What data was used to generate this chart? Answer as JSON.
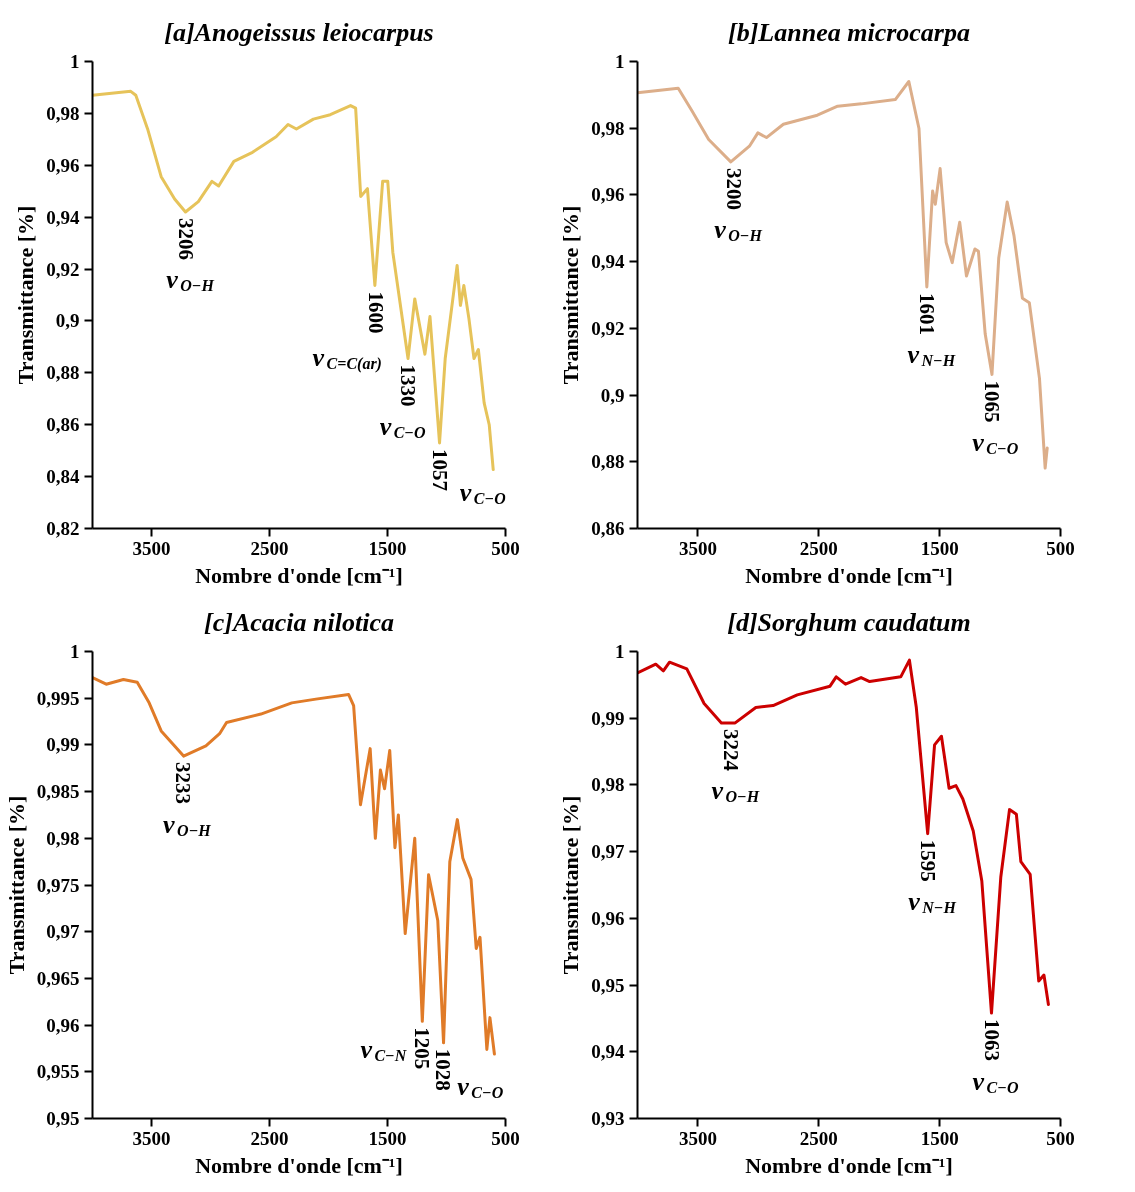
{
  "chart_data": [
    {
      "type": "line",
      "title": "[a]Anogeissus leiocarpus",
      "xlabel": "Nombre d'onde [cm⁻¹]",
      "ylabel": "Transmittance [%]",
      "grid": false,
      "x": [
        4000,
        3676,
        3633,
        3533,
        3418,
        3304,
        3212,
        3103,
        2988,
        2931,
        2802,
        2644,
        2444,
        2343,
        2272,
        2128,
        1985,
        1813,
        1770,
        1727,
        1670,
        1607,
        1541,
        1498,
        1455,
        1326,
        1269,
        1183,
        1140,
        1059,
        1011,
        910,
        882,
        853,
        810,
        767,
        730,
        681,
        638,
        604
      ],
      "series": [
        {
          "color": "#e6c35a",
          "values": [
            0.987,
            0.9885,
            0.987,
            0.974,
            0.9556,
            0.947,
            0.942,
            0.946,
            0.9538,
            0.952,
            0.9615,
            0.965,
            0.971,
            0.9757,
            0.974,
            0.9778,
            0.9795,
            0.983,
            0.982,
            0.948,
            0.951,
            0.9137,
            0.9538,
            0.9538,
            0.9265,
            0.8855,
            0.9085,
            0.8872,
            0.9017,
            0.853,
            0.8855,
            0.9214,
            0.906,
            0.9137,
            0.9009,
            0.8855,
            0.889,
            0.8684,
            0.86,
            0.8427
          ]
        }
      ],
      "xlim": [
        4000,
        500
      ],
      "xticks": [
        3500,
        2500,
        1500,
        500
      ],
      "ylim": [
        0.82,
        1
      ],
      "yticks": [
        {
          "value": 0.82,
          "label": "0,82"
        },
        {
          "value": 0.84,
          "label": "0,84"
        },
        {
          "value": 0.86,
          "label": "0,86"
        },
        {
          "value": 0.88,
          "label": "0,88"
        },
        {
          "value": 0.9,
          "label": "0,9"
        },
        {
          "value": 0.92,
          "label": "0,92"
        },
        {
          "value": 0.94,
          "label": "0,94"
        },
        {
          "value": 0.96,
          "label": "0,96"
        },
        {
          "value": 0.98,
          "label": "0,98"
        },
        {
          "value": 1,
          "label": "1"
        }
      ],
      "annotations": [
        {
          "text": "3206",
          "x": 3206,
          "y": 0.942
        },
        {
          "text": "ν$_{O−H}$",
          "x": 3206,
          "y": 0.942
        },
        {
          "text": "1600",
          "x": 1600,
          "y": 0.9137
        },
        {
          "text": "ν$_{C=C(ar)}$",
          "x": 1600,
          "y": 0.9137
        },
        {
          "text": "1330",
          "x": 1330,
          "y": 0.8855
        },
        {
          "text": "ν$_{C−O}$",
          "x": 1330,
          "y": 0.8855
        },
        {
          "text": "1057",
          "x": 1057,
          "y": 0.853
        },
        {
          "text": "ν$_{C−O}$",
          "x": 1057,
          "y": 0.853
        }
      ]
    },
    {
      "type": "line",
      "title": "[b]Lannea microcarpa",
      "xlabel": "Nombre d'onde [cm⁻¹]",
      "ylabel": "Transmittance [%]",
      "grid": false,
      "x": [
        4000,
        3663,
        3551,
        3411,
        3228,
        3074,
        3004,
        2933,
        2793,
        2512,
        2344,
        2148,
        1867,
        1755,
        1671,
        1606,
        1558,
        1536,
        1496,
        1446,
        1396,
        1334,
        1278,
        1208,
        1179,
        1123,
        1067,
        1011,
        941,
        885,
        815,
        758,
        674,
        627,
        610
      ],
      "series": [
        {
          "color": "#dcae8a",
          "values": [
            0.9906,
            0.992,
            0.9853,
            0.9766,
            0.9699,
            0.9746,
            0.9786,
            0.9772,
            0.9812,
            0.9839,
            0.9866,
            0.9873,
            0.9886,
            0.994,
            0.9799,
            0.9324,
            0.9612,
            0.9572,
            0.9679,
            0.9457,
            0.9397,
            0.9518,
            0.9357,
            0.9438,
            0.9431,
            0.9183,
            0.9062,
            0.9411,
            0.9579,
            0.9478,
            0.929,
            0.9277,
            0.905,
            0.8781,
            0.8841
          ]
        }
      ],
      "xlim": [
        4000,
        500
      ],
      "xticks": [
        3500,
        2500,
        1500,
        500
      ],
      "ylim": [
        0.86,
        1
      ],
      "yticks": [
        {
          "value": 0.86,
          "label": "0,86"
        },
        {
          "value": 0.88,
          "label": "0,88"
        },
        {
          "value": 0.9,
          "label": "0,9"
        },
        {
          "value": 0.92,
          "label": "0,92"
        },
        {
          "value": 0.94,
          "label": "0,94"
        },
        {
          "value": 0.96,
          "label": "0,96"
        },
        {
          "value": 0.98,
          "label": "0,98"
        },
        {
          "value": 1,
          "label": "1"
        }
      ],
      "annotations": [
        {
          "text": "3200",
          "x": 3200,
          "y": 0.9699
        },
        {
          "text": "ν$_{O−H}$",
          "x": 3200,
          "y": 0.9699
        },
        {
          "text": "1601",
          "x": 1601,
          "y": 0.9324
        },
        {
          "text": "ν$_{N−H}$",
          "x": 1601,
          "y": 0.9324
        },
        {
          "text": "1065",
          "x": 1065,
          "y": 0.9062
        },
        {
          "text": "ν$_{C−O}$",
          "x": 1065,
          "y": 0.9062
        }
      ]
    },
    {
      "type": "line",
      "title": "[c]Acacia nilotica",
      "xlabel": "Nombre d'onde [cm⁻¹]",
      "ylabel": "Transmittance [%]",
      "grid": false,
      "x": [
        4000,
        3884,
        3738,
        3621,
        3520,
        3418,
        3228,
        3039,
        2923,
        2864,
        2573,
        2311,
        2107,
        1830,
        1787,
        1729,
        1647,
        1603,
        1560,
        1525,
        1481,
        1437,
        1408,
        1350,
        1269,
        1205,
        1152,
        1074,
        1025,
        972,
        908,
        862,
        792,
        748,
        716,
        658,
        632,
        594
      ],
      "series": [
        {
          "color": "#e07b28",
          "values": [
            0.9972,
            0.9965,
            0.997,
            0.9967,
            0.9945,
            0.9915,
            0.9888,
            0.9899,
            0.9912,
            0.9924,
            0.9933,
            0.9945,
            0.9949,
            0.9954,
            0.9942,
            0.9836,
            0.9896,
            0.98,
            0.9873,
            0.9853,
            0.9894,
            0.979,
            0.9825,
            0.9698,
            0.98,
            0.9604,
            0.9761,
            0.9712,
            0.9581,
            0.9775,
            0.982,
            0.9779,
            0.9756,
            0.9682,
            0.9694,
            0.9574,
            0.9608,
            0.9569
          ]
        }
      ],
      "xlim": [
        4000,
        500
      ],
      "xticks": [
        3500,
        2500,
        1500,
        500
      ],
      "ylim": [
        0.95,
        1
      ],
      "yticks": [
        {
          "value": 0.95,
          "label": "0,95"
        },
        {
          "value": 0.955,
          "label": "0,955"
        },
        {
          "value": 0.96,
          "label": "0,96"
        },
        {
          "value": 0.965,
          "label": "0,965"
        },
        {
          "value": 0.97,
          "label": "0,97"
        },
        {
          "value": 0.975,
          "label": "0,975"
        },
        {
          "value": 0.98,
          "label": "0,98"
        },
        {
          "value": 0.985,
          "label": "0,985"
        },
        {
          "value": 0.99,
          "label": "0,99"
        },
        {
          "value": 0.995,
          "label": "0,995"
        },
        {
          "value": 1,
          "label": "1"
        }
      ],
      "annotations": [
        {
          "text": "3233",
          "x": 3233,
          "y": 0.9888
        },
        {
          "text": "ν$_{O−H}$",
          "x": 3233,
          "y": 0.9888
        },
        {
          "text": "1205",
          "x": 1205,
          "y": 0.9604
        },
        {
          "text": "ν$_{C−N}$",
          "x": 1205,
          "y": 0.9604
        },
        {
          "text": "1028",
          "x": 1028,
          "y": 0.9581
        },
        {
          "text": "ν$_{C−O}$",
          "x": 1028,
          "y": 0.9581
        }
      ]
    },
    {
      "type": "line",
      "title": "[d]Sorghum caudatum",
      "xlabel": "Nombre d'onde [cm⁻¹]",
      "ylabel": "Transmittance [%]",
      "grid": false,
      "x": [
        4000,
        3849,
        3786,
        3735,
        3592,
        3449,
        3306,
        3192,
        3021,
        2878,
        2678,
        2407,
        2356,
        2279,
        2150,
        2079,
        1822,
        1750,
        1693,
        1599,
        1542,
        1485,
        1422,
        1365,
        1308,
        1222,
        1151,
        1071,
        994,
        922,
        865,
        828,
        751,
        680,
        637,
        600
      ],
      "series": [
        {
          "color": "#cc0000",
          "values": [
            0.9968,
            0.9981,
            0.9971,
            0.9984,
            0.9974,
            0.9922,
            0.9893,
            0.9893,
            0.9916,
            0.9919,
            0.9935,
            0.9948,
            0.9962,
            0.9951,
            0.9961,
            0.9955,
            0.9962,
            0.9987,
            0.9916,
            0.9727,
            0.986,
            0.9873,
            0.9795,
            0.9799,
            0.9779,
            0.9731,
            0.9656,
            0.9458,
            0.9662,
            0.9763,
            0.9756,
            0.9685,
            0.9666,
            0.9506,
            0.9515,
            0.9471
          ]
        }
      ],
      "xlim": [
        4000,
        500
      ],
      "xticks": [
        3500,
        2500,
        1500,
        500
      ],
      "ylim": [
        0.93,
        1
      ],
      "yticks": [
        {
          "value": 0.93,
          "label": "0,93"
        },
        {
          "value": 0.94,
          "label": "0,94"
        },
        {
          "value": 0.95,
          "label": "0,95"
        },
        {
          "value": 0.96,
          "label": "0,96"
        },
        {
          "value": 0.97,
          "label": "0,97"
        },
        {
          "value": 0.98,
          "label": "0,98"
        },
        {
          "value": 0.99,
          "label": "0,99"
        },
        {
          "value": 1,
          "label": "1"
        }
      ],
      "annotations": [
        {
          "text": "3224",
          "x": 3224,
          "y": 0.9893
        },
        {
          "text": "ν$_{O−H}$",
          "x": 3224,
          "y": 0.9893
        },
        {
          "text": "1595",
          "x": 1595,
          "y": 0.9727
        },
        {
          "text": "ν$_{N−H}$",
          "x": 1595,
          "y": 0.9727
        },
        {
          "text": "1063",
          "x": 1063,
          "y": 0.9458
        },
        {
          "text": "ν$_{C−O}$",
          "x": 1063,
          "y": 0.9458
        }
      ]
    }
  ]
}
